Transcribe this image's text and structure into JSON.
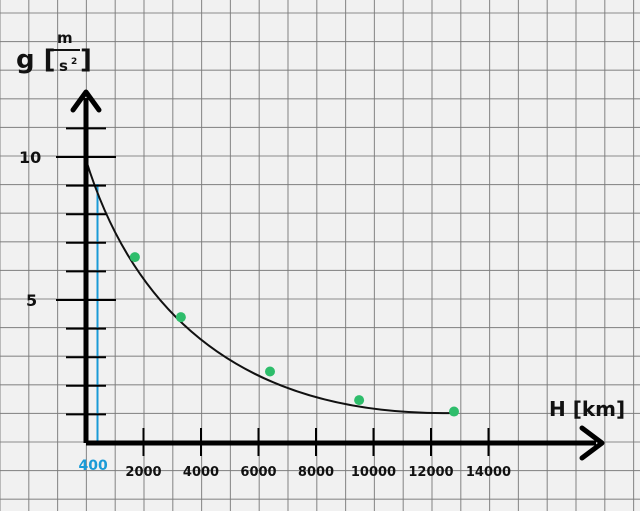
{
  "chart_data": {
    "type": "scatter",
    "xlabel": "H [km]",
    "ylabel": {
      "symbol": "g [",
      "num": "m",
      "den": "s",
      "exp": "2",
      "close": "]"
    },
    "x_ticks": [
      "2000",
      "4000",
      "6000",
      "8000",
      "10000",
      "12000",
      "14000"
    ],
    "y_ticks": [
      "5",
      "10"
    ],
    "highlight": {
      "label": "400",
      "x": 400,
      "color": "#1a9bd7"
    },
    "points": [
      {
        "x": 1700,
        "y": 6.5
      },
      {
        "x": 3300,
        "y": 4.4
      },
      {
        "x": 6400,
        "y": 2.5
      },
      {
        "x": 9500,
        "y": 1.5
      },
      {
        "x": 12800,
        "y": 1.1
      }
    ],
    "curve": {
      "x0": 0,
      "y0": 9.9,
      "x1": 12800,
      "y1": 1.05
    },
    "point_color": "#2ebd6b",
    "grid": true
  }
}
